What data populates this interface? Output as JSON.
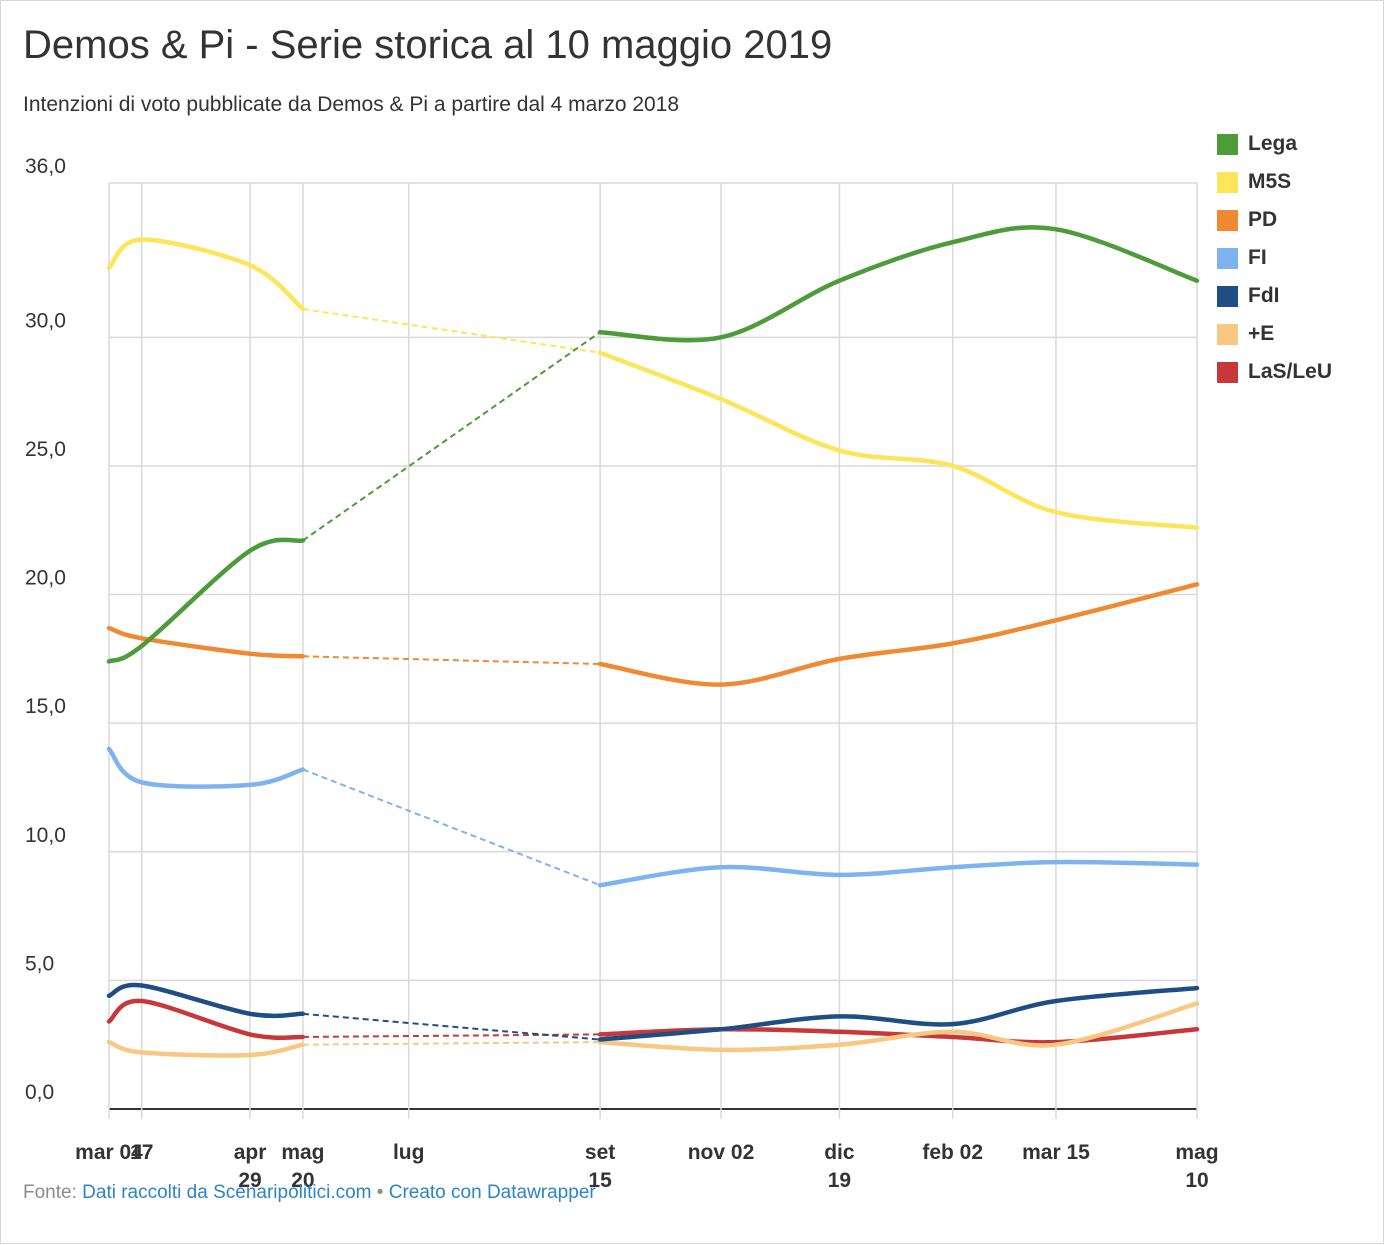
{
  "chart_data": {
    "type": "line",
    "title": "Demos & Pi - Serie storica al 10 maggio 2019",
    "subtitle": "Intenzioni di voto pubblicate da Demos & Pi a partire dal 4 marzo 2018",
    "xlabel": "",
    "ylabel": "",
    "ylim": [
      0,
      36
    ],
    "yticks": [
      "0,0",
      "5,0",
      "10,0",
      "15,0",
      "20,0",
      "25,0",
      "30,0",
      "36,0"
    ],
    "ytick_values": [
      0,
      5,
      10,
      15,
      20,
      25,
      30,
      36
    ],
    "x": [
      "2018-03-04",
      "2018-03-17",
      "2018-04-29",
      "2018-05-20",
      "2018-09-15",
      "2018-11-02",
      "2018-12-19",
      "2019-02-02",
      "2019-03-15",
      "2019-05-10"
    ],
    "xticks": [
      {
        "date": "2018-03-04",
        "label": "mar 04"
      },
      {
        "date": "2018-03-17",
        "label": "17"
      },
      {
        "date": "2018-04-29",
        "label": "apr 29"
      },
      {
        "date": "2018-05-20",
        "label": "mag 20"
      },
      {
        "date": "2018-07-01",
        "label": "lug"
      },
      {
        "date": "2018-09-15",
        "label": "set 15"
      },
      {
        "date": "2018-11-02",
        "label": "nov 02"
      },
      {
        "date": "2018-12-19",
        "label": "dic 19"
      },
      {
        "date": "2019-02-02",
        "label": "feb 02"
      },
      {
        "date": "2019-03-15",
        "label": "mar 15"
      },
      {
        "date": "2019-05-10",
        "label": "mag 10"
      }
    ],
    "gap": {
      "from": "2018-05-20",
      "to": "2018-09-15",
      "style": "dashed"
    },
    "grid": true,
    "legend_position": "right",
    "series": [
      {
        "name": "Lega",
        "color": "#4d9b3a",
        "values": [
          17.4,
          18.0,
          21.7,
          22.1,
          30.2,
          30.0,
          32.2,
          33.7,
          34.2,
          32.2
        ]
      },
      {
        "name": "M5S",
        "color": "#fde55a",
        "values": [
          32.7,
          33.8,
          32.8,
          31.1,
          29.4,
          27.6,
          25.6,
          25.0,
          23.2,
          22.6
        ]
      },
      {
        "name": "PD",
        "color": "#ef8a33",
        "values": [
          18.7,
          18.3,
          17.7,
          17.6,
          17.3,
          16.5,
          17.5,
          18.1,
          19.0,
          20.4
        ]
      },
      {
        "name": "FI",
        "color": "#7db4ef",
        "values": [
          14.0,
          12.7,
          12.6,
          13.2,
          8.7,
          9.4,
          9.1,
          9.4,
          9.6,
          9.5
        ]
      },
      {
        "name": "FdI",
        "color": "#1f4e85",
        "values": [
          4.4,
          4.8,
          3.7,
          3.7,
          2.7,
          3.1,
          3.6,
          3.3,
          4.2,
          4.7
        ]
      },
      {
        "name": "+E",
        "color": "#f8c883",
        "values": [
          2.6,
          2.2,
          2.1,
          2.5,
          2.6,
          2.3,
          2.5,
          3.0,
          2.5,
          4.1
        ]
      },
      {
        "name": "LaS/LeU",
        "color": "#c8383a",
        "values": [
          3.4,
          4.2,
          2.9,
          2.8,
          2.9,
          3.1,
          3.0,
          2.8,
          2.6,
          3.1
        ]
      }
    ]
  },
  "source": {
    "prefix": "Fonte: ",
    "link_text": "Dati raccolti da Scenaripolitici.com",
    "separator": " • ",
    "credit": "Creato con Datawrapper"
  }
}
